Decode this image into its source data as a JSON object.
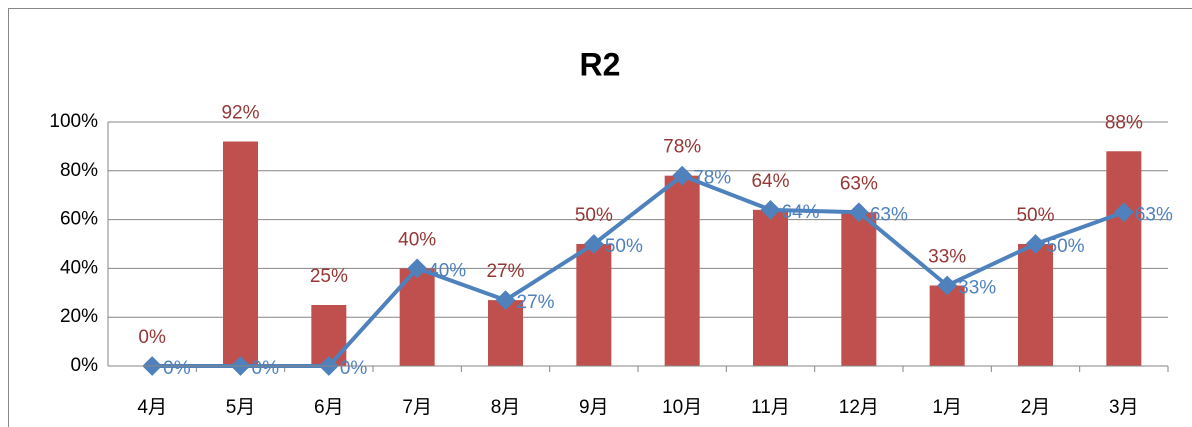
{
  "chart_data": {
    "type": "bar",
    "title": "R2",
    "categories": [
      "4月",
      "5月",
      "6月",
      "7月",
      "8月",
      "9月",
      "10月",
      "11月",
      "12月",
      "1月",
      "2月",
      "3月"
    ],
    "series": [
      {
        "type": "bar",
        "color": "#c0504d",
        "label_color": "#953735",
        "values": [
          0,
          92,
          25,
          40,
          27,
          50,
          78,
          64,
          63,
          33,
          50,
          88
        ],
        "value_labels": [
          "0%",
          "92%",
          "25%",
          "40%",
          "27%",
          "50%",
          "78%",
          "64%",
          "63%",
          "33%",
          "50%",
          "88%"
        ]
      },
      {
        "type": "line",
        "color": "#4f81bd",
        "label_color": "#4f81bd",
        "values": [
          0,
          0,
          0,
          40,
          27,
          50,
          78,
          64,
          63,
          33,
          50,
          63
        ],
        "value_labels": [
          "0%",
          "0%",
          "0%",
          "40%",
          "27%",
          "50%",
          "78%",
          "64%",
          "63%",
          "33%",
          "50%",
          "63%"
        ]
      }
    ],
    "ylim": [
      0,
      100
    ],
    "yticks": [
      {
        "value": 0,
        "label": "0%"
      },
      {
        "value": 20,
        "label": "20%"
      },
      {
        "value": 40,
        "label": "40%"
      },
      {
        "value": 60,
        "label": "60%"
      },
      {
        "value": 80,
        "label": "80%"
      },
      {
        "value": 100,
        "label": "100%"
      }
    ],
    "grid": true
  }
}
